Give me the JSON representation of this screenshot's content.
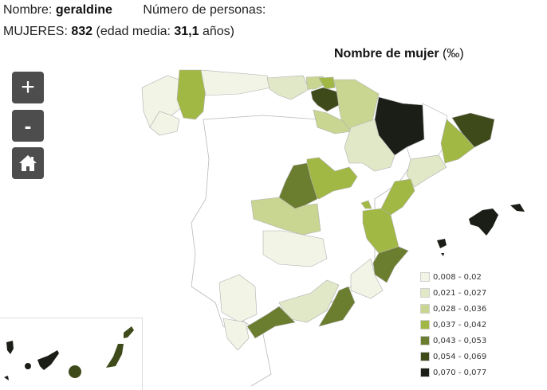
{
  "header": {
    "name_label": "Nombre:",
    "name_value": "geraldine",
    "count_label": "Número de personas:",
    "women_label": "MUJERES:",
    "women_count": "832",
    "age_prefix": "(edad media:",
    "age_value": "31,1",
    "age_suffix": "años)"
  },
  "map": {
    "title": "Nombre de mujer",
    "unit": "(‰)",
    "controls": {
      "zoom_in": "+",
      "zoom_out": "-",
      "home_icon": "home-icon"
    }
  },
  "legend": {
    "items": [
      {
        "label": "0,008 - 0,02",
        "color": "#f2f4e6"
      },
      {
        "label": "0,021 - 0,027",
        "color": "#e1e8c8"
      },
      {
        "label": "0,028 - 0,036",
        "color": "#c8d691"
      },
      {
        "label": "0,037 - 0,042",
        "color": "#a2b845"
      },
      {
        "label": "0,043 - 0,053",
        "color": "#6b7d2e"
      },
      {
        "label": "0,054 - 0,069",
        "color": "#3f4a1a"
      },
      {
        "label": "0,070 - 0,077",
        "color": "#1a1e16"
      }
    ]
  },
  "chart_data": {
    "type": "choropleth",
    "title": "Nombre de mujer (‰)",
    "name": "geraldine",
    "women": 832,
    "mean_age": 31.1,
    "classes": [
      "0,008 - 0,02",
      "0,021 - 0,027",
      "0,028 - 0,036",
      "0,037 - 0,042",
      "0,043 - 0,053",
      "0,054 - 0,069",
      "0,070 - 0,077"
    ],
    "regions": [
      {
        "region": "Huesca",
        "class": 6
      },
      {
        "region": "Baleares",
        "class": 6
      },
      {
        "region": "Tenerife",
        "class": 6
      },
      {
        "region": "Álava",
        "class": 5
      },
      {
        "region": "Girona",
        "class": 5
      },
      {
        "region": "Las Palmas",
        "class": 5
      },
      {
        "region": "Madrid",
        "class": 4
      },
      {
        "region": "Alicante",
        "class": 4
      },
      {
        "region": "Málaga",
        "class": 4
      },
      {
        "region": "Almería",
        "class": 4
      },
      {
        "region": "Lugo",
        "class": 3
      },
      {
        "region": "Guipúzcoa",
        "class": 3
      },
      {
        "region": "Guadalajara",
        "class": 3
      },
      {
        "region": "Barcelona",
        "class": 3
      },
      {
        "region": "Castellón",
        "class": 3
      },
      {
        "region": "Valencia",
        "class": 3
      },
      {
        "region": "Toledo",
        "class": 2
      },
      {
        "region": "Navarra",
        "class": 2
      },
      {
        "region": "La Rioja",
        "class": 2
      },
      {
        "region": "Cantabria",
        "class": 1
      },
      {
        "region": "Zaragoza",
        "class": 1
      },
      {
        "region": "Tarragona",
        "class": 1
      },
      {
        "region": "Granada",
        "class": 1
      },
      {
        "region": "Asturias",
        "class": 0
      },
      {
        "region": "A Coruña",
        "class": 0
      },
      {
        "region": "Pontevedra",
        "class": 0
      },
      {
        "region": "Ciudad Real",
        "class": 0
      },
      {
        "region": "Murcia",
        "class": 0
      },
      {
        "region": "Sevilla",
        "class": 0
      },
      {
        "region": "Cádiz",
        "class": 0
      }
    ]
  }
}
